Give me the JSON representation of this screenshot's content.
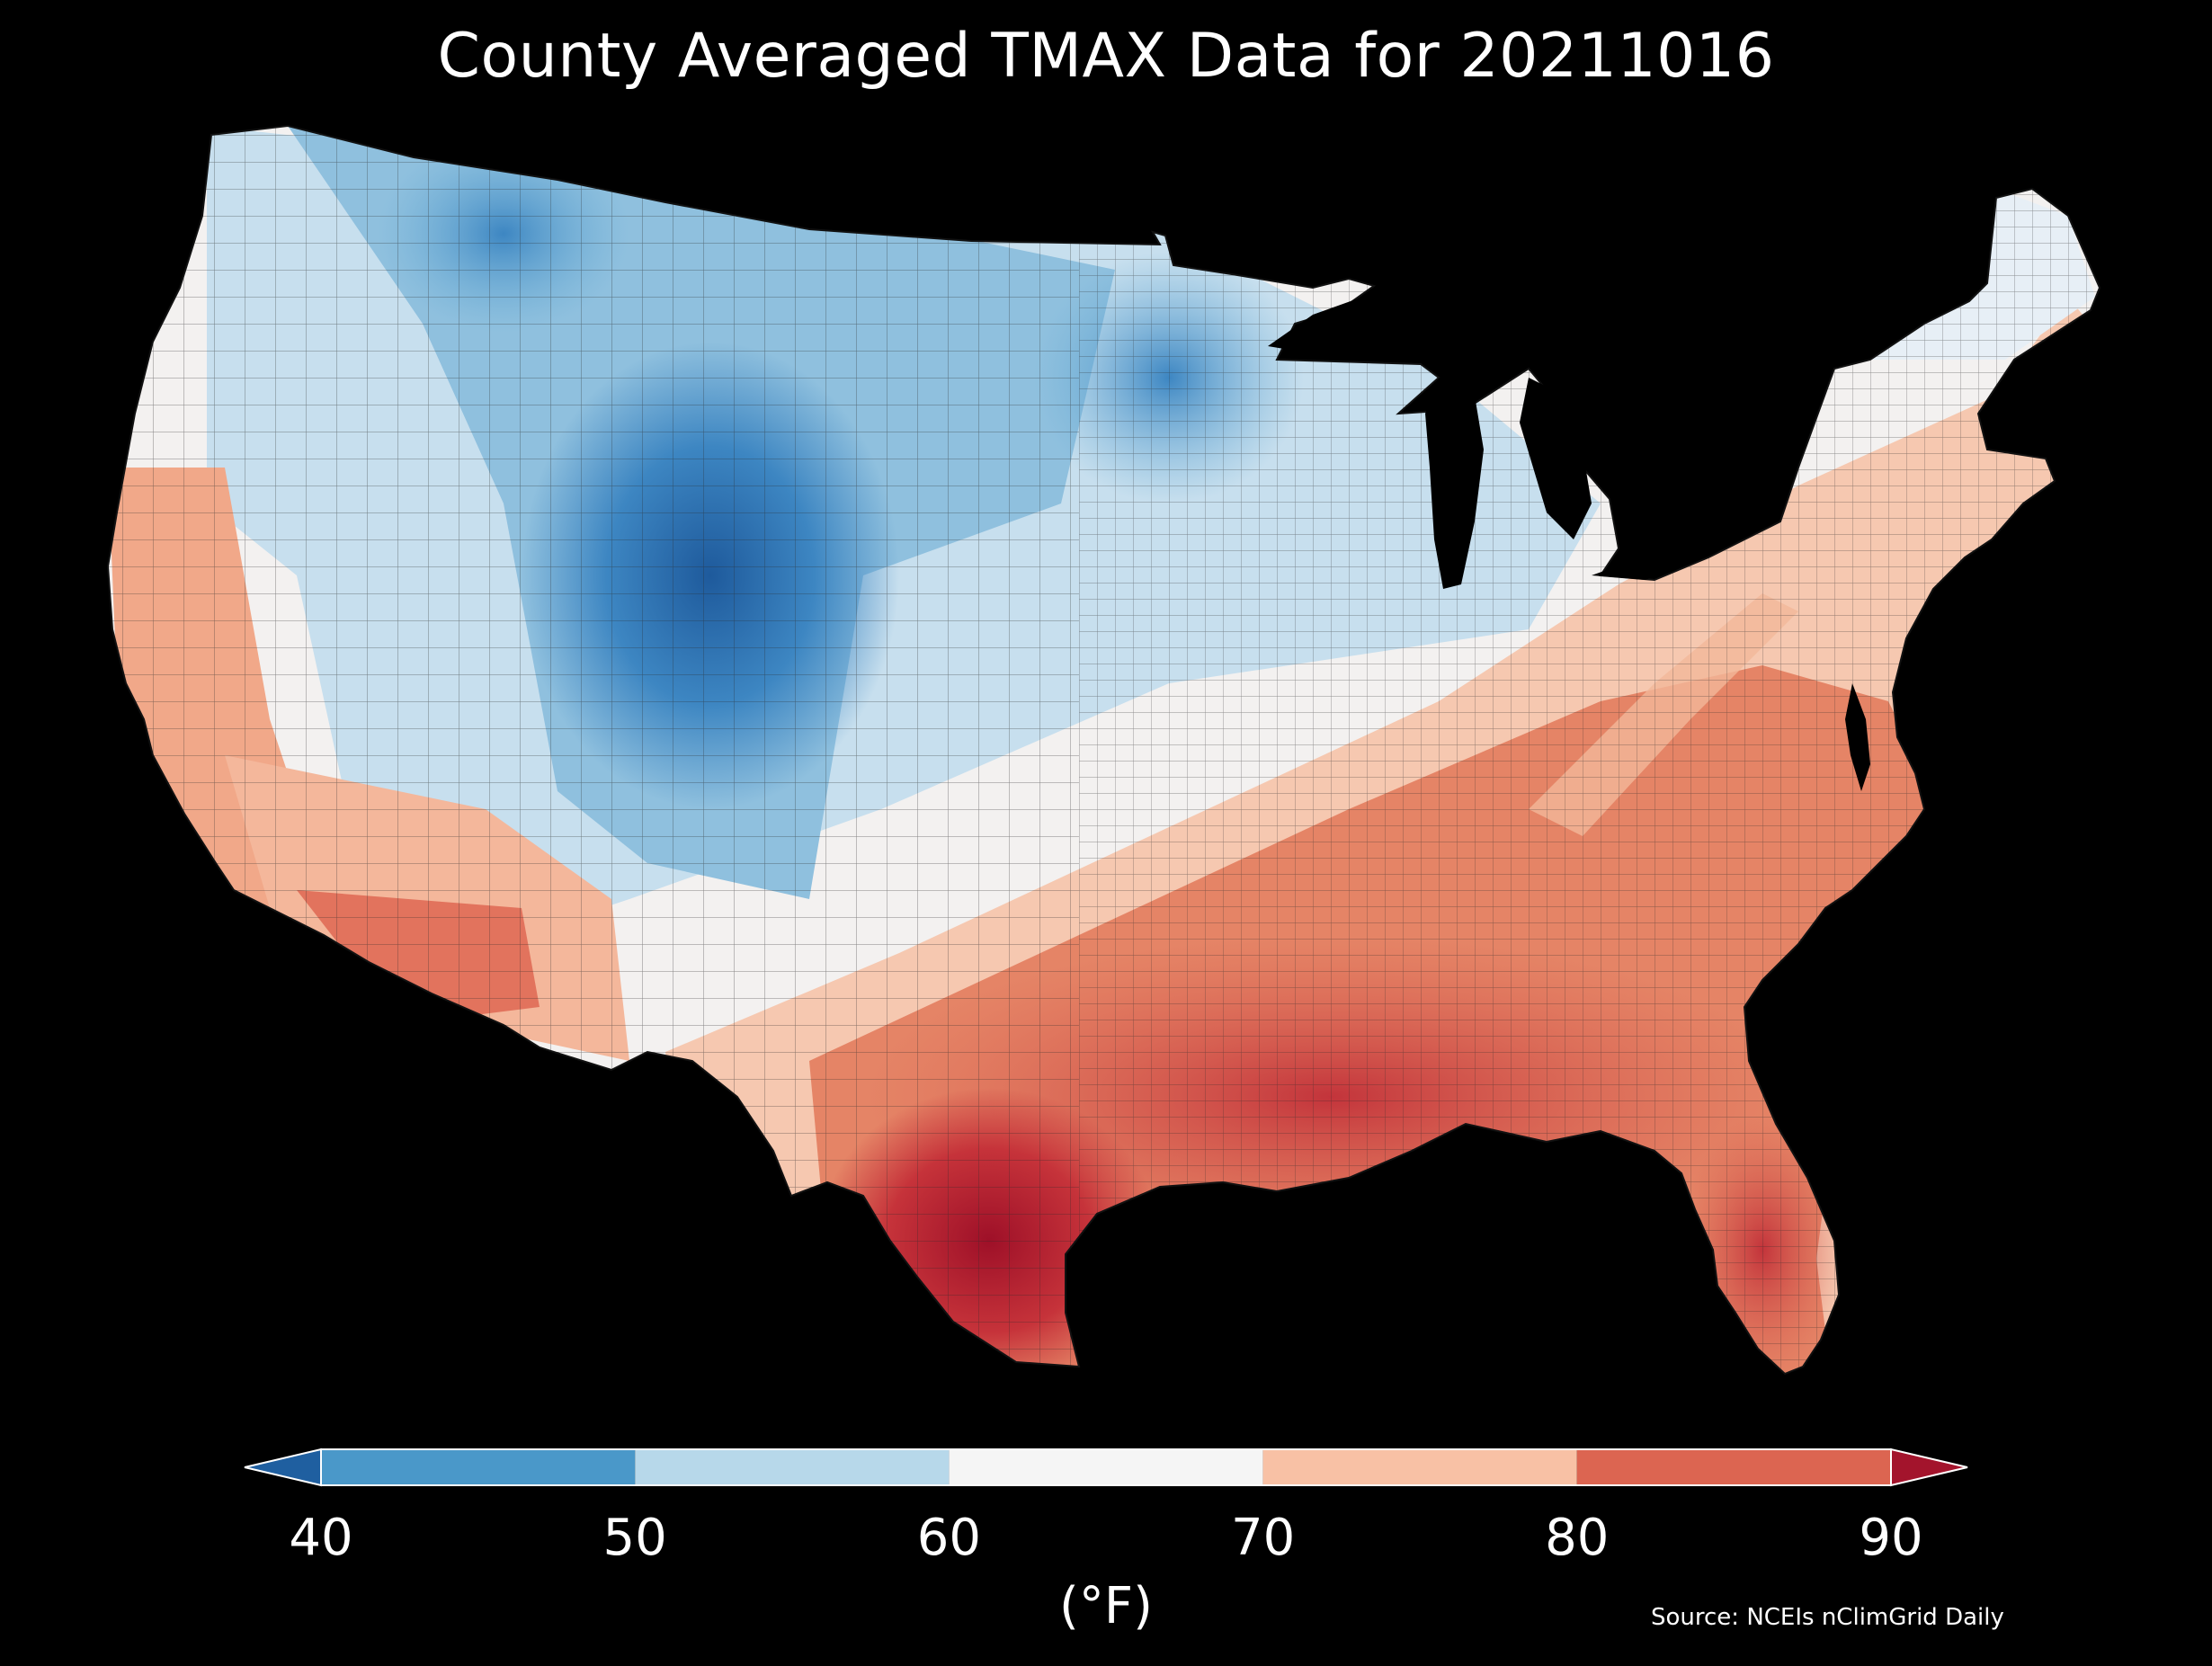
{
  "title": "County Averaged TMAX Data for 20211016",
  "colorbar": {
    "unit_label": "(°F)",
    "ticks": [
      "40",
      "50",
      "60",
      "70",
      "80",
      "90"
    ],
    "tick_values": [
      40,
      50,
      60,
      70,
      80,
      90
    ],
    "extend": "both",
    "min_color": "#1f5fa0",
    "max_color": "#a3142c",
    "bins": [
      {
        "from": 40,
        "to": 50,
        "color": "#4a98c9"
      },
      {
        "from": 50,
        "to": 60,
        "color": "#b7d8ea"
      },
      {
        "from": 60,
        "to": 70,
        "color": "#f5f5f5"
      },
      {
        "from": 70,
        "to": 80,
        "color": "#f8c1a5"
      },
      {
        "from": 80,
        "to": 90,
        "color": "#dc6551"
      }
    ]
  },
  "source": "Source: NCEIs nClimGrid Daily",
  "map": {
    "region": "contiguous-united-states",
    "background_color": "#000000",
    "county_border_color": "#2a2a2a",
    "water_color": "#000000"
  }
}
